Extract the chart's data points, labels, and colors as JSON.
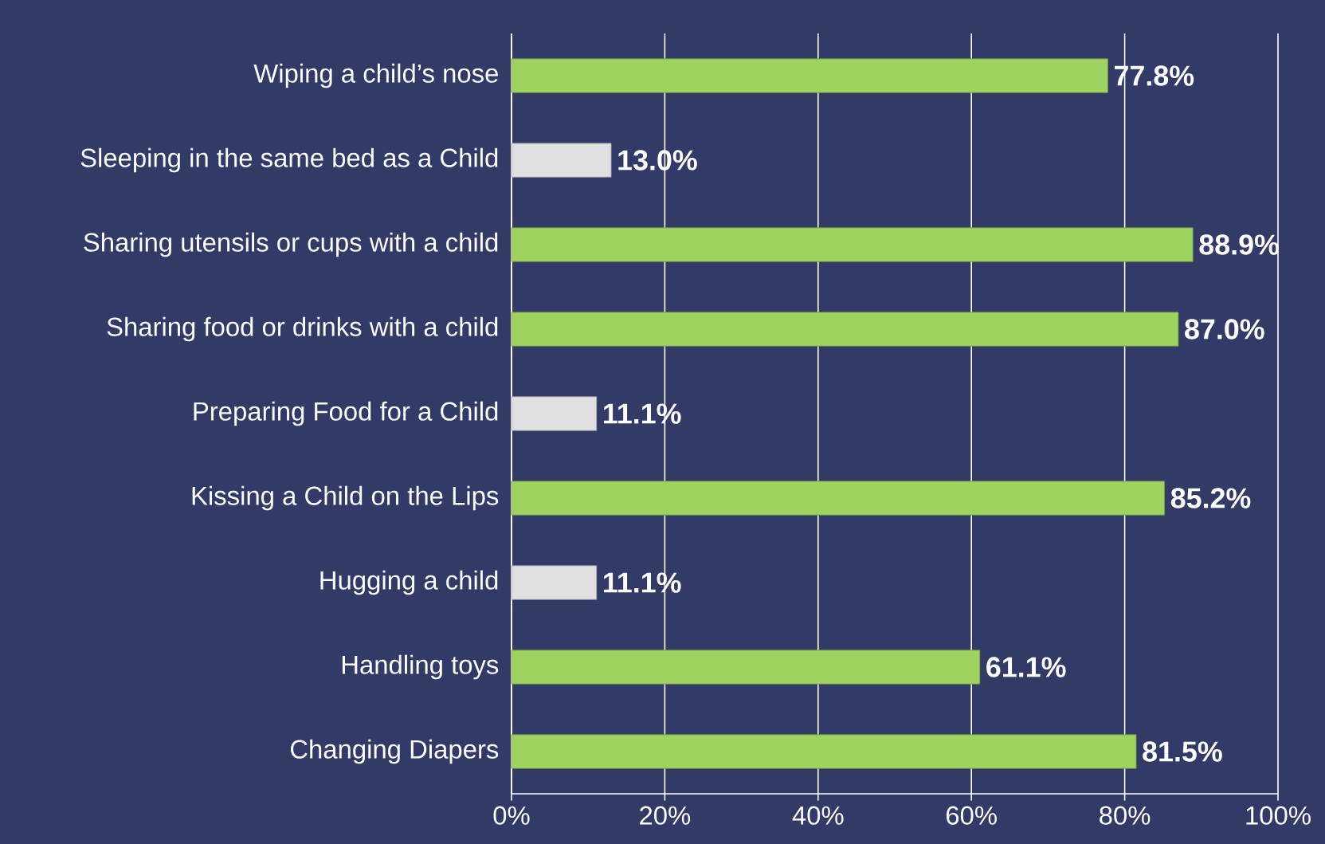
{
  "chart_data": {
    "type": "bar",
    "orientation": "horizontal",
    "categories": [
      "Wiping a child’s nose",
      "Sleeping in the same bed as a Child",
      "Sharing utensils or cups with a child",
      "Sharing food or drinks with a child",
      "Preparing Food for a Child",
      "Kissing a Child on the Lips",
      "Hugging a child",
      "Handling toys",
      "Changing Diapers"
    ],
    "values": [
      77.8,
      13.0,
      88.9,
      87.0,
      11.1,
      85.2,
      11.1,
      61.1,
      81.5
    ],
    "value_labels": [
      "77.8%",
      "13.0%",
      "88.9%",
      "87.0%",
      "11.1%",
      "85.2%",
      "11.1%",
      "61.1%",
      "81.5%"
    ],
    "colors": [
      "#9ed35f",
      "#e0e0e0",
      "#9ed35f",
      "#9ed35f",
      "#e0e0e0",
      "#9ed35f",
      "#e0e0e0",
      "#9ed35f",
      "#9ed35f"
    ],
    "xlim": [
      0,
      100
    ],
    "xticks": [
      {
        "value": 0,
        "label": "0%"
      },
      {
        "value": 20,
        "label": "20%"
      },
      {
        "value": 40,
        "label": "40%"
      },
      {
        "value": 60,
        "label": "60%"
      },
      {
        "value": 80,
        "label": "80%"
      },
      {
        "value": 100,
        "label": "100%"
      }
    ],
    "grid": "x"
  }
}
